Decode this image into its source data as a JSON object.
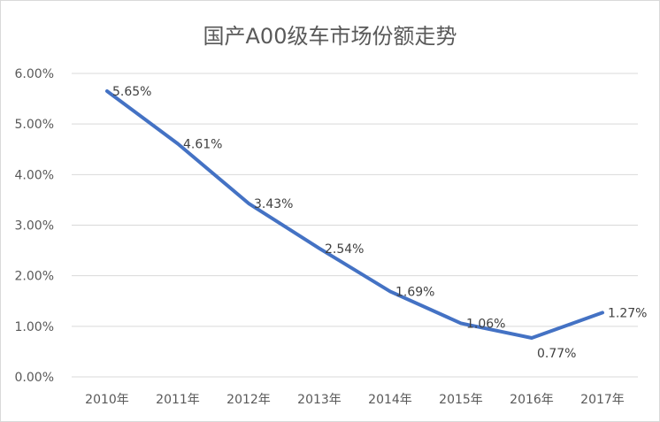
{
  "chart_data": {
    "type": "line",
    "title": "国产A00级车市场份额走势",
    "categories": [
      "2010年",
      "2011年",
      "2012年",
      "2013年",
      "2014年",
      "2015年",
      "2016年",
      "2017年"
    ],
    "series": [
      {
        "values": [
          5.65,
          4.61,
          3.43,
          2.54,
          1.69,
          1.06,
          0.77,
          1.27
        ],
        "labels": [
          "5.65%",
          "4.61%",
          "3.43%",
          "2.54%",
          "1.69%",
          "1.06%",
          "0.77%",
          "1.27%"
        ],
        "color": "#4472c4"
      }
    ],
    "yticks": [
      "0.00%",
      "1.00%",
      "2.00%",
      "3.00%",
      "4.00%",
      "5.00%",
      "6.00%"
    ],
    "ylim": [
      0,
      6
    ],
    "grid": true,
    "legend": "none",
    "colors": {
      "line": "#4472c4",
      "grid": "#d9d9d9",
      "text": "#595959"
    }
  }
}
